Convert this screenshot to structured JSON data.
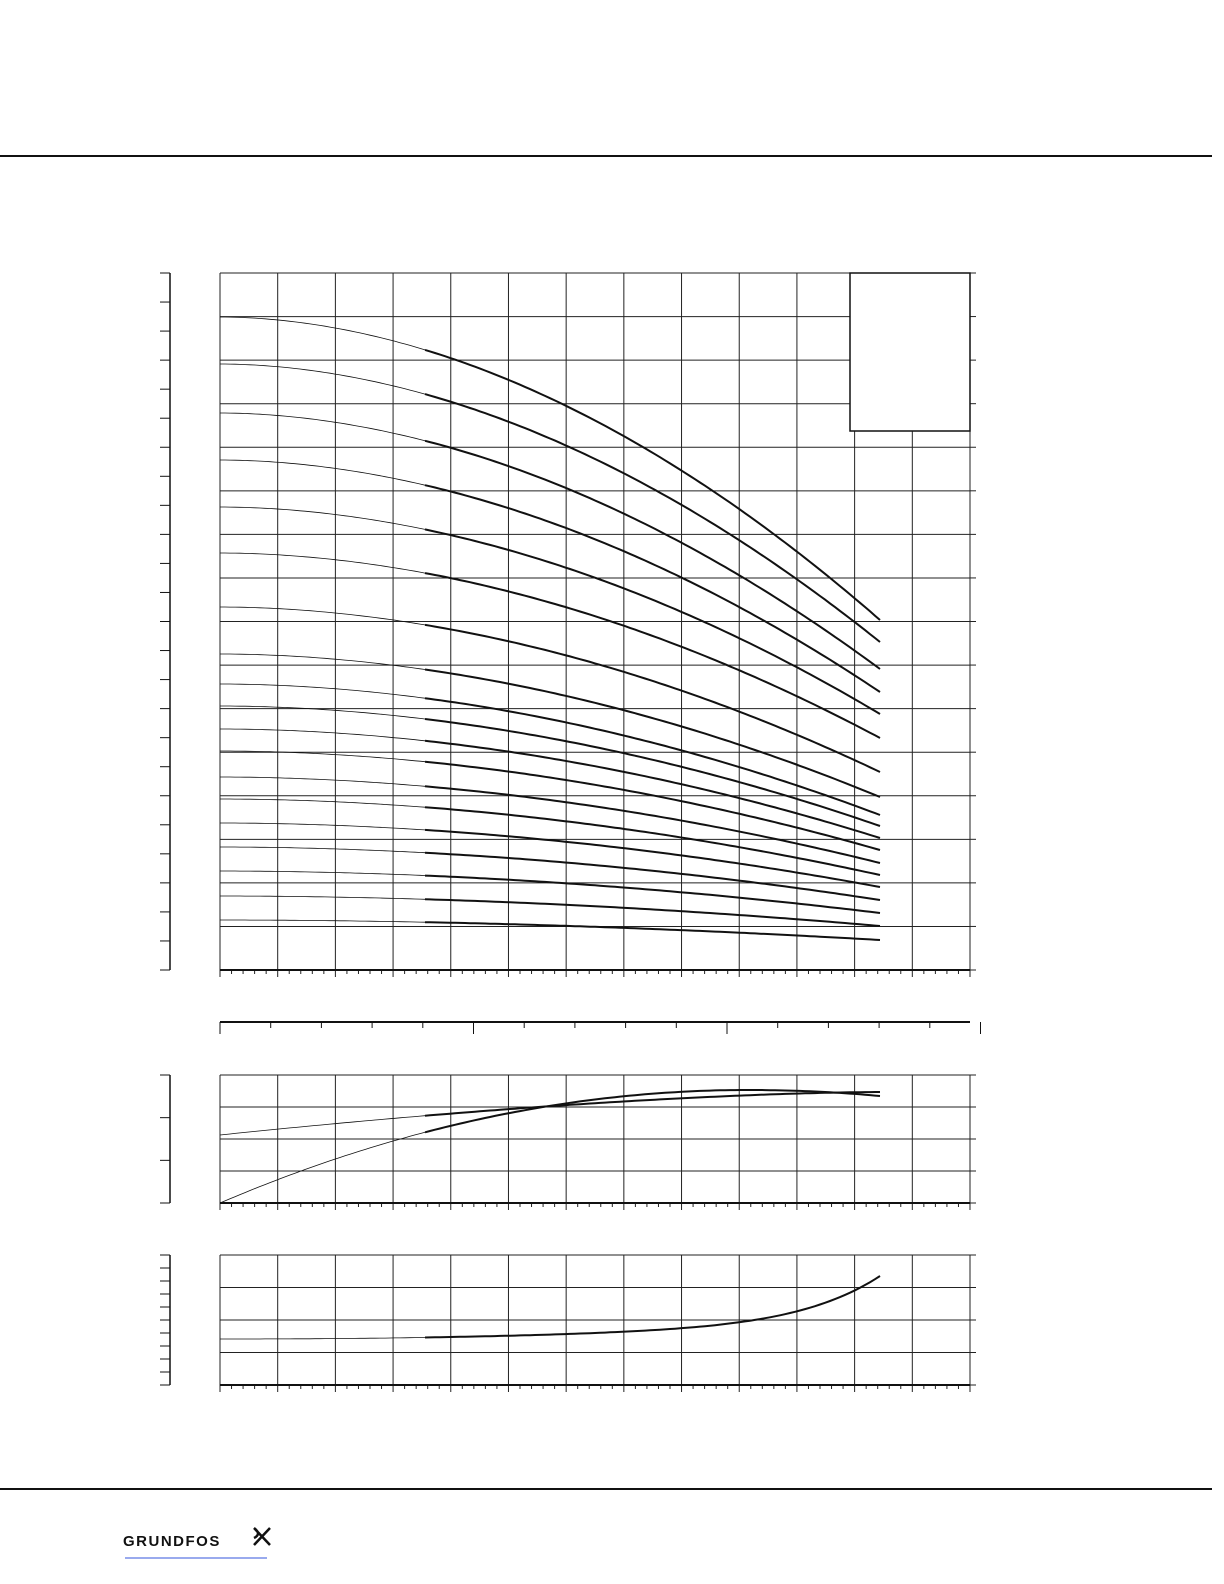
{
  "footer": {
    "logo": "GRUNDFOS"
  }
}
